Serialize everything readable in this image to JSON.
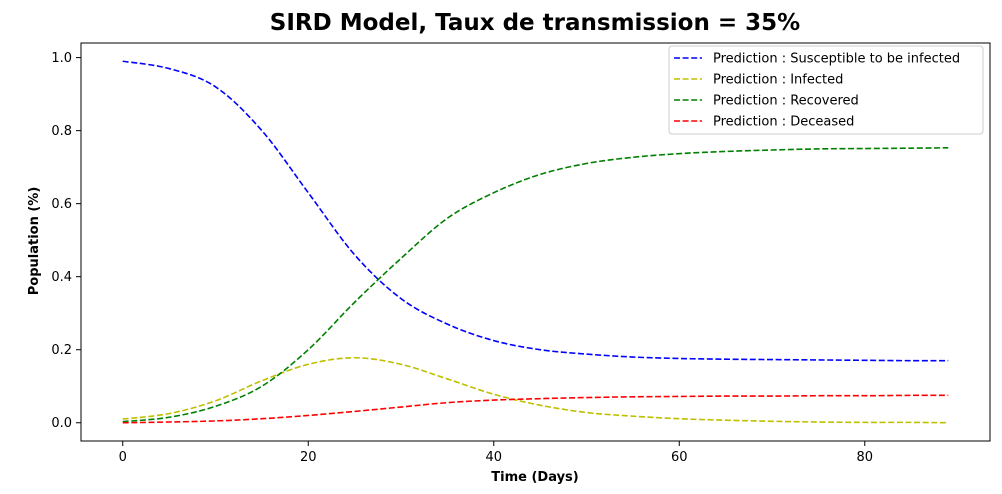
{
  "chart_data": {
    "type": "line",
    "title": "SIRD Model, Taux de transmission = 35%",
    "xlabel": "Time (Days)",
    "ylabel": "Population (%)",
    "xlim": [
      -4.5,
      93.5
    ],
    "ylim": [
      -0.05,
      1.04
    ],
    "xticks": [
      0,
      20,
      40,
      60,
      80
    ],
    "yticks": [
      0.0,
      0.2,
      0.4,
      0.6,
      0.8,
      1.0
    ],
    "xtick_labels": [
      "0",
      "20",
      "40",
      "60",
      "80"
    ],
    "ytick_labels": [
      "0.0",
      "0.2",
      "0.4",
      "0.6",
      "0.8",
      "1.0"
    ],
    "grid": false,
    "legend_position": "top-right",
    "line_style": "dashed",
    "x": [
      0,
      5,
      10,
      15,
      20,
      25,
      30,
      35,
      40,
      45,
      50,
      55,
      60,
      65,
      70,
      75,
      80,
      85,
      89
    ],
    "series": [
      {
        "name": "Prediction : Susceptible to be infected",
        "color": "#0000ff",
        "values": [
          0.99,
          0.97,
          0.92,
          0.8,
          0.63,
          0.46,
          0.34,
          0.27,
          0.225,
          0.2,
          0.188,
          0.18,
          0.176,
          0.174,
          0.173,
          0.172,
          0.171,
          0.17,
          0.17
        ]
      },
      {
        "name": "Prediction : Infected",
        "color": "#bfbf00",
        "values": [
          0.01,
          0.025,
          0.06,
          0.115,
          0.16,
          0.178,
          0.16,
          0.12,
          0.078,
          0.048,
          0.028,
          0.018,
          0.011,
          0.007,
          0.004,
          0.002,
          0.001,
          0.001,
          0.0
        ]
      },
      {
        "name": "Prediction : Recovered",
        "color": "#008000",
        "values": [
          0.003,
          0.015,
          0.045,
          0.1,
          0.2,
          0.33,
          0.45,
          0.56,
          0.63,
          0.68,
          0.71,
          0.727,
          0.737,
          0.743,
          0.747,
          0.75,
          0.751,
          0.752,
          0.753
        ]
      },
      {
        "name": "Prediction : Deceased",
        "color": "#ff0000",
        "values": [
          0.0,
          0.002,
          0.005,
          0.011,
          0.02,
          0.031,
          0.043,
          0.055,
          0.062,
          0.066,
          0.069,
          0.071,
          0.072,
          0.073,
          0.073,
          0.074,
          0.074,
          0.075,
          0.075
        ]
      }
    ]
  }
}
